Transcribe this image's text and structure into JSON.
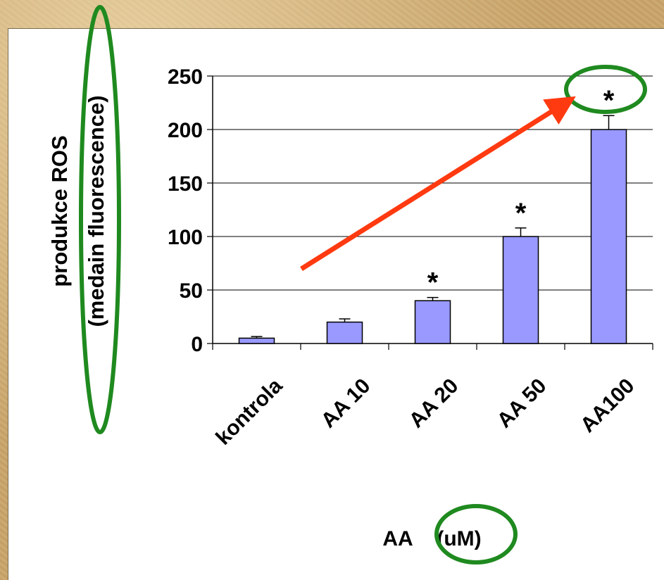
{
  "chart_data": {
    "type": "bar",
    "categories": [
      "kontrola",
      "AA 10",
      "AA 20",
      "AA 50",
      "AA100"
    ],
    "values": [
      5,
      20,
      40,
      100,
      200
    ],
    "error": [
      1.5,
      3,
      3,
      8,
      13
    ],
    "significance": [
      "",
      "",
      "*",
      "*",
      "*"
    ],
    "ylabel_line1": "produkce ROS",
    "ylabel_line2": "(medain fluorescence)",
    "xlabel_part1": "AA",
    "xlabel_part2": "(uM)",
    "ylim": [
      0,
      250
    ],
    "yticks": [
      0,
      50,
      100,
      150,
      200,
      250
    ],
    "grid": true,
    "bar_color": "#9999ff",
    "annotation_colors": {
      "ellipse": "#1f8a1f",
      "arrow": "#ff3a10"
    }
  }
}
